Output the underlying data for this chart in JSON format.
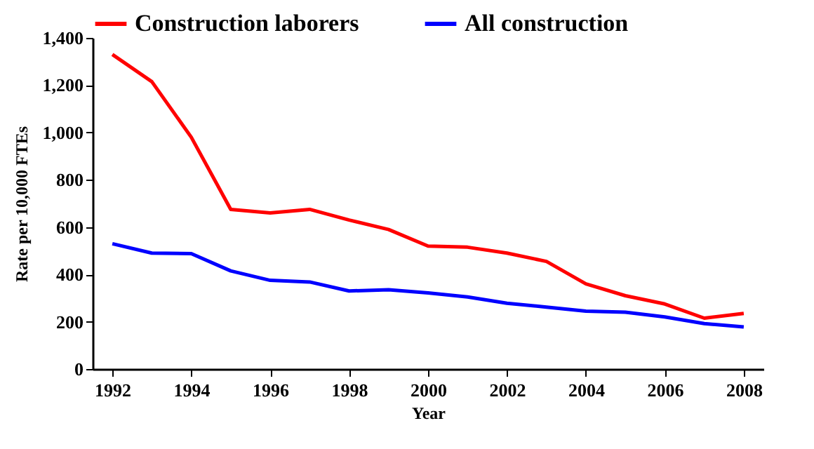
{
  "chart_data": {
    "type": "line",
    "xlabel": "Year",
    "ylabel": "Rate per 10,000 FTEs",
    "x": [
      1992,
      1993,
      1994,
      1995,
      1996,
      1997,
      1998,
      1999,
      2000,
      2001,
      2002,
      2003,
      2004,
      2005,
      2006,
      2007,
      2008
    ],
    "series": [
      {
        "name": "Construction laborers",
        "color": "#ff0000",
        "values": [
          1330,
          1215,
          980,
          675,
          660,
          675,
          630,
          590,
          520,
          515,
          490,
          455,
          360,
          310,
          275,
          215,
          235
        ]
      },
      {
        "name": "All construction",
        "color": "#0000ff",
        "values": [
          530,
          490,
          488,
          415,
          375,
          368,
          330,
          335,
          322,
          305,
          278,
          262,
          245,
          240,
          220,
          192,
          178
        ]
      }
    ],
    "xlim": [
      1991.5,
      2008.5
    ],
    "xticks": [
      1992,
      1994,
      1996,
      1998,
      2000,
      2002,
      2004,
      2006,
      2008
    ],
    "ylim": [
      0,
      1400
    ],
    "yticks": [
      0,
      200,
      400,
      600,
      800,
      {
        "value": 1000,
        "label": "1,000"
      },
      {
        "value": 1200,
        "label": "1,200"
      },
      {
        "value": 1400,
        "label": "1,400"
      }
    ],
    "grid": false,
    "legend": "top",
    "marker": "none",
    "line_style": "solid"
  }
}
